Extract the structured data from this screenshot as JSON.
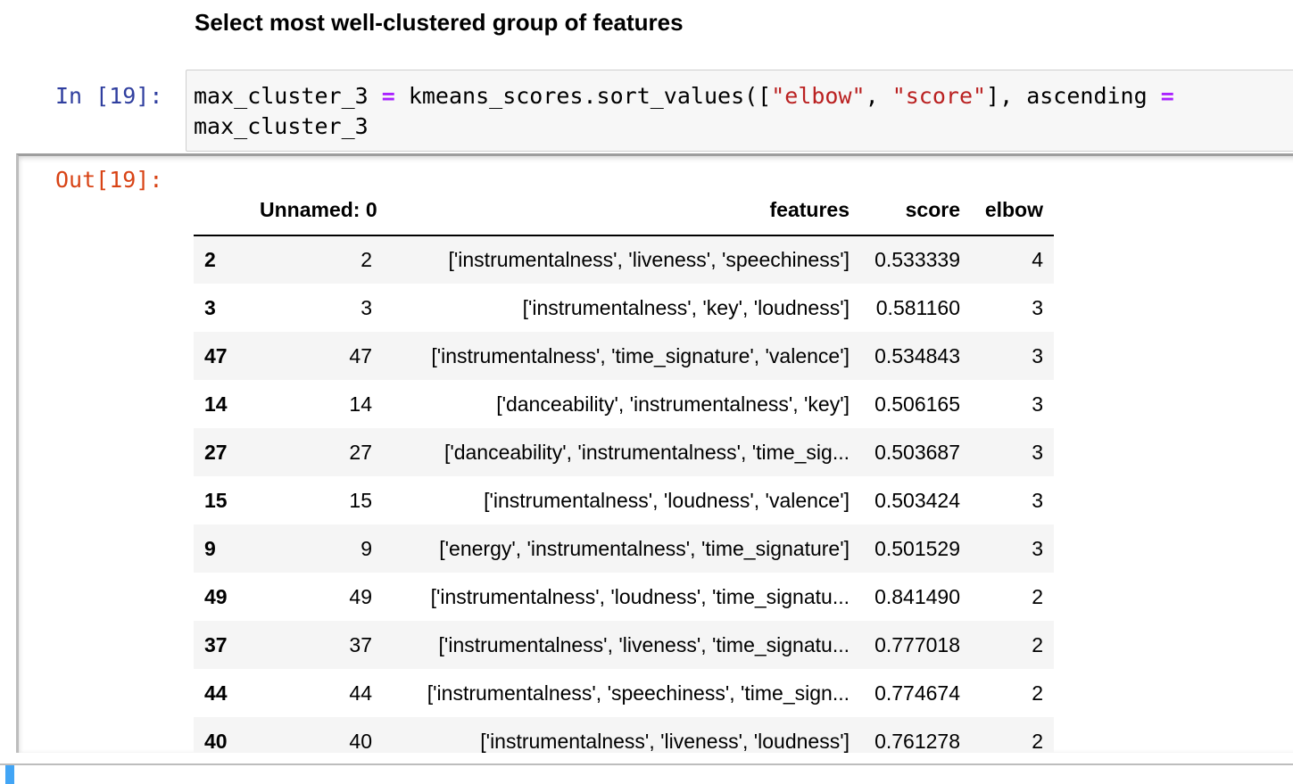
{
  "markdown": {
    "heading": "Select most well-clustered group of features"
  },
  "input_cell": {
    "prompt": "In [19]:",
    "line1": {
      "var": "max_cluster_3 ",
      "op": "=",
      "call": " kmeans_scores.sort_values([",
      "str1": "\"elbow\"",
      "sep": ", ",
      "str2": "\"score\"",
      "tail": "], ascending ",
      "op2": "="
    },
    "line2": "max_cluster_3"
  },
  "output_cell": {
    "prompt": "Out[19]:",
    "table": {
      "columns": [
        "",
        "Unnamed: 0",
        "features",
        "score",
        "elbow"
      ],
      "rows": [
        {
          "index": "2",
          "unnamed": "2",
          "features": "['instrumentalness', 'liveness', 'speechiness']",
          "score": "0.533339",
          "elbow": "4"
        },
        {
          "index": "3",
          "unnamed": "3",
          "features": "['instrumentalness', 'key', 'loudness']",
          "score": "0.581160",
          "elbow": "3"
        },
        {
          "index": "47",
          "unnamed": "47",
          "features": "['instrumentalness', 'time_signature', 'valence']",
          "score": "0.534843",
          "elbow": "3"
        },
        {
          "index": "14",
          "unnamed": "14",
          "features": "['danceability', 'instrumentalness', 'key']",
          "score": "0.506165",
          "elbow": "3"
        },
        {
          "index": "27",
          "unnamed": "27",
          "features": "['danceability', 'instrumentalness', 'time_sig...",
          "score": "0.503687",
          "elbow": "3"
        },
        {
          "index": "15",
          "unnamed": "15",
          "features": "['instrumentalness', 'loudness', 'valence']",
          "score": "0.503424",
          "elbow": "3"
        },
        {
          "index": "9",
          "unnamed": "9",
          "features": "['energy', 'instrumentalness', 'time_signature']",
          "score": "0.501529",
          "elbow": "3"
        },
        {
          "index": "49",
          "unnamed": "49",
          "features": "['instrumentalness', 'loudness', 'time_signatu...",
          "score": "0.841490",
          "elbow": "2"
        },
        {
          "index": "37",
          "unnamed": "37",
          "features": "['instrumentalness', 'liveness', 'time_signatu...",
          "score": "0.777018",
          "elbow": "2"
        },
        {
          "index": "44",
          "unnamed": "44",
          "features": "['instrumentalness', 'speechiness', 'time_sign...",
          "score": "0.774674",
          "elbow": "2"
        },
        {
          "index": "40",
          "unnamed": "40",
          "features": "['instrumentalness', 'liveness', 'loudness']",
          "score": "0.761278",
          "elbow": "2"
        }
      ]
    }
  },
  "colors": {
    "in_prompt": "#303f9f",
    "out_prompt": "#d84315",
    "string": "#ba2121",
    "operator": "#aa22ff",
    "selected_cell_marker": "#42a5f5"
  }
}
